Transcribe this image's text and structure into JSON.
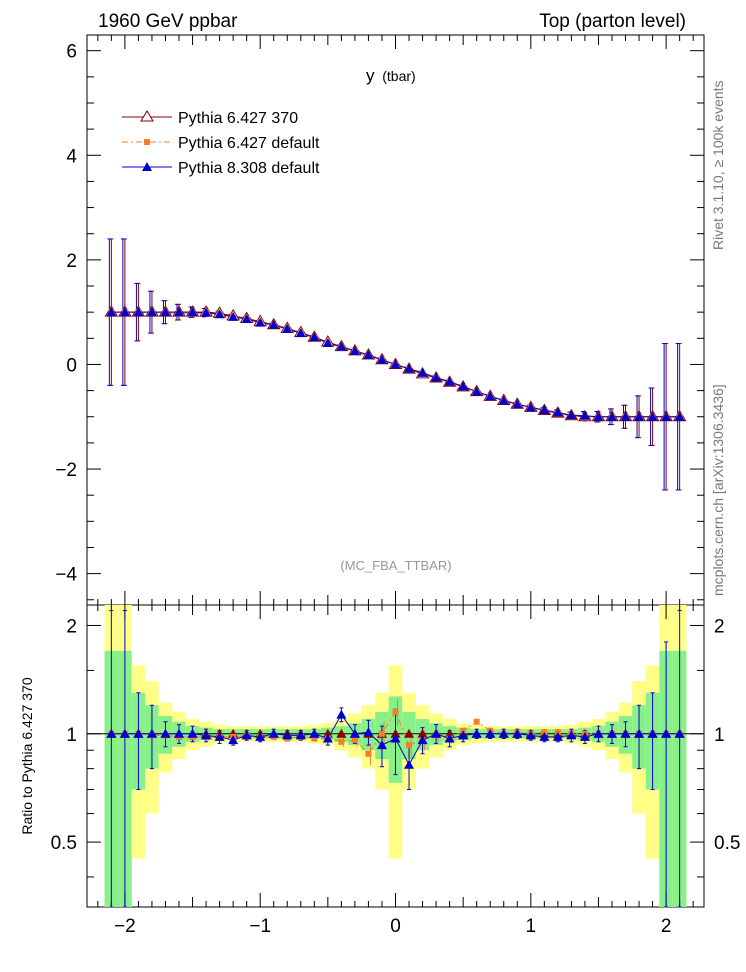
{
  "header": {
    "left_title": "1960 GeV ppbar",
    "right_title": "Top (parton level)",
    "plot_title": "y",
    "plot_title_sub": "(tbar)",
    "analysis_id": "(MC_FBA_TTBAR)"
  },
  "side_labels": {
    "rivet": "Rivet 3.1.10, ≥ 100k events",
    "mcplots": "mcplots.cern.ch [arXiv:1306.3436]"
  },
  "legend": {
    "entries": [
      {
        "label": "Pythia 6.427 370",
        "color": "#8b0000",
        "marker": "open-triangle"
      },
      {
        "label": "Pythia 6.427 default",
        "color": "#f08030",
        "marker": "square"
      },
      {
        "label": "Pythia 8.308 default",
        "color": "#0000cc",
        "marker": "triangle"
      }
    ]
  },
  "colors": {
    "ref": "#8b0000",
    "p6def": "#f08030",
    "p8": "#0000cc",
    "band_outer": "#ffff88",
    "band_inner": "#88f088"
  },
  "chart_data": [
    {
      "type": "line",
      "panel": "main",
      "xlim": [
        -2.28,
        2.28
      ],
      "ylim": [
        -4.6,
        6.3
      ],
      "yticks": [
        -4,
        -2,
        0,
        2,
        4,
        6
      ],
      "ytick_labels": [
        "−4",
        "−2",
        "0",
        "2",
        "4",
        "6"
      ],
      "x": [
        -2.1,
        -2.0,
        -1.9,
        -1.8,
        -1.7,
        -1.6,
        -1.5,
        -1.4,
        -1.3,
        -1.2,
        -1.1,
        -1.0,
        -0.9,
        -0.8,
        -0.7,
        -0.6,
        -0.5,
        -0.4,
        -0.3,
        -0.2,
        -0.1,
        0.0,
        0.1,
        0.2,
        0.3,
        0.4,
        0.5,
        0.6,
        0.7,
        0.8,
        0.9,
        1.0,
        1.1,
        1.2,
        1.3,
        1.4,
        1.5,
        1.6,
        1.7,
        1.8,
        1.9,
        2.0,
        2.1
      ],
      "series": [
        {
          "name": "Pythia 6.427 370",
          "values": [
            1.0,
            1.0,
            1.0,
            1.0,
            1.0,
            1.0,
            1.0,
            1.0,
            0.98,
            0.93,
            0.88,
            0.82,
            0.76,
            0.69,
            0.61,
            0.52,
            0.43,
            0.34,
            0.26,
            0.18,
            0.09,
            0.0,
            -0.09,
            -0.18,
            -0.26,
            -0.34,
            -0.43,
            -0.52,
            -0.61,
            -0.69,
            -0.76,
            -0.82,
            -0.88,
            -0.93,
            -0.98,
            -1.0,
            -1.0,
            -1.0,
            -1.0,
            -1.0,
            -1.0,
            -1.0,
            -1.0
          ],
          "errors": [
            1.4,
            1.4,
            0.55,
            0.4,
            0.22,
            0.15,
            0.1,
            0.08,
            0.06,
            0.05,
            0.04,
            0.04,
            0.03,
            0.03,
            0.03,
            0.03,
            0.03,
            0.03,
            0.03,
            0.03,
            0.03,
            0.03,
            0.03,
            0.03,
            0.03,
            0.03,
            0.03,
            0.03,
            0.03,
            0.03,
            0.03,
            0.04,
            0.04,
            0.05,
            0.06,
            0.08,
            0.1,
            0.15,
            0.22,
            0.4,
            0.55,
            1.4,
            1.4
          ]
        },
        {
          "name": "Pythia 6.427 default",
          "values": [
            1.0,
            1.0,
            1.0,
            0.99,
            0.99,
            0.98,
            0.98,
            0.98,
            0.96,
            0.91,
            0.87,
            0.8,
            0.75,
            0.67,
            0.6,
            0.5,
            0.42,
            0.32,
            0.25,
            0.16,
            0.09,
            0.0,
            -0.08,
            -0.17,
            -0.25,
            -0.33,
            -0.43,
            -0.53,
            -0.62,
            -0.69,
            -0.77,
            -0.82,
            -0.89,
            -0.94,
            -0.98,
            -1.0,
            -1.0,
            -1.0,
            -1.0,
            -1.0,
            -1.0,
            -1.0,
            -1.0
          ],
          "errors": [
            1.4,
            1.4,
            0.55,
            0.4,
            0.22,
            0.15,
            0.1,
            0.08,
            0.06,
            0.05,
            0.04,
            0.04,
            0.03,
            0.03,
            0.03,
            0.03,
            0.03,
            0.03,
            0.03,
            0.03,
            0.03,
            0.03,
            0.03,
            0.03,
            0.03,
            0.03,
            0.03,
            0.03,
            0.03,
            0.03,
            0.03,
            0.04,
            0.04,
            0.05,
            0.06,
            0.08,
            0.1,
            0.15,
            0.22,
            0.4,
            0.55,
            1.4,
            1.4
          ]
        },
        {
          "name": "Pythia 8.308 default",
          "values": [
            1.0,
            1.0,
            1.0,
            1.0,
            1.0,
            1.0,
            1.0,
            0.99,
            0.96,
            0.91,
            0.87,
            0.8,
            0.76,
            0.68,
            0.6,
            0.52,
            0.41,
            0.34,
            0.26,
            0.18,
            0.09,
            0.0,
            -0.08,
            -0.16,
            -0.25,
            -0.33,
            -0.42,
            -0.52,
            -0.61,
            -0.69,
            -0.76,
            -0.82,
            -0.87,
            -0.92,
            -0.97,
            -0.98,
            -1.0,
            -1.0,
            -1.0,
            -1.0,
            -1.0,
            -1.0,
            -1.0
          ],
          "errors": [
            1.4,
            1.4,
            0.55,
            0.4,
            0.22,
            0.15,
            0.1,
            0.08,
            0.06,
            0.05,
            0.04,
            0.04,
            0.03,
            0.03,
            0.03,
            0.03,
            0.03,
            0.03,
            0.03,
            0.03,
            0.03,
            0.03,
            0.03,
            0.03,
            0.03,
            0.03,
            0.03,
            0.03,
            0.03,
            0.03,
            0.03,
            0.04,
            0.04,
            0.05,
            0.06,
            0.08,
            0.1,
            0.15,
            0.22,
            0.4,
            0.55,
            1.4,
            1.4
          ]
        }
      ]
    },
    {
      "type": "line",
      "panel": "ratio",
      "ylabel": "Ratio to Pythia 6.427 370",
      "xlim": [
        -2.28,
        2.28
      ],
      "ylim": [
        0.33,
        2.28
      ],
      "yticks": [
        0.5,
        1,
        2
      ],
      "ytick_labels": [
        "0.5",
        "1",
        "2"
      ],
      "xticks": [
        -2,
        -1,
        0,
        1,
        2
      ],
      "xtick_labels": [
        "−2",
        "−1",
        "0",
        "1",
        "2"
      ],
      "x": [
        -2.1,
        -2.0,
        -1.9,
        -1.8,
        -1.7,
        -1.6,
        -1.5,
        -1.4,
        -1.3,
        -1.2,
        -1.1,
        -1.0,
        -0.9,
        -0.8,
        -0.7,
        -0.6,
        -0.5,
        -0.4,
        -0.3,
        -0.2,
        -0.1,
        0.0,
        0.1,
        0.2,
        0.3,
        0.4,
        0.5,
        0.6,
        0.7,
        0.8,
        0.9,
        1.0,
        1.1,
        1.2,
        1.3,
        1.4,
        1.5,
        1.6,
        1.7,
        1.8,
        1.9,
        2.0,
        2.1
      ],
      "band_outer_err": [
        1.4,
        1.4,
        0.55,
        0.4,
        0.22,
        0.15,
        0.1,
        0.08,
        0.06,
        0.05,
        0.05,
        0.05,
        0.05,
        0.05,
        0.05,
        0.06,
        0.07,
        0.1,
        0.14,
        0.2,
        0.3,
        0.55,
        0.3,
        0.2,
        0.14,
        0.1,
        0.07,
        0.06,
        0.05,
        0.05,
        0.05,
        0.05,
        0.05,
        0.05,
        0.06,
        0.08,
        0.1,
        0.15,
        0.22,
        0.4,
        0.55,
        1.4,
        1.4
      ],
      "band_inner_err": [
        0.7,
        0.7,
        0.3,
        0.2,
        0.12,
        0.08,
        0.05,
        0.04,
        0.03,
        0.03,
        0.03,
        0.03,
        0.03,
        0.03,
        0.03,
        0.03,
        0.04,
        0.05,
        0.07,
        0.1,
        0.15,
        0.27,
        0.15,
        0.1,
        0.07,
        0.05,
        0.04,
        0.03,
        0.03,
        0.03,
        0.03,
        0.03,
        0.03,
        0.03,
        0.03,
        0.04,
        0.05,
        0.08,
        0.12,
        0.2,
        0.3,
        0.7,
        0.7
      ],
      "series": [
        {
          "name": "Pythia 6.427 default",
          "values": [
            1.0,
            1.0,
            1.0,
            0.99,
            0.99,
            0.98,
            0.98,
            0.98,
            0.98,
            0.98,
            0.99,
            0.98,
            0.98,
            0.97,
            0.98,
            0.97,
            0.97,
            0.95,
            0.96,
            0.88,
            1.0,
            1.15,
            0.93,
            0.96,
            0.99,
            0.97,
            1.02,
            1.08,
            1.02,
            1.0,
            1.01,
            1.0,
            1.01,
            1.01,
            1.0,
            1.0,
            1.0,
            1.0,
            1.0,
            1.0,
            1.0,
            1.0,
            1.0
          ],
          "errors": [
            0.02,
            0.02,
            0.02,
            0.02,
            0.02,
            0.02,
            0.02,
            0.02,
            0.02,
            0.02,
            0.02,
            0.02,
            0.02,
            0.02,
            0.02,
            0.02,
            0.02,
            0.03,
            0.04,
            0.06,
            0.08,
            0.1,
            0.08,
            0.06,
            0.04,
            0.03,
            0.02,
            0.02,
            0.02,
            0.02,
            0.02,
            0.02,
            0.02,
            0.02,
            0.02,
            0.02,
            0.02,
            0.02,
            0.02,
            0.02,
            0.02,
            0.02,
            0.02
          ]
        },
        {
          "name": "Pythia 8.308 default",
          "values": [
            1.0,
            1.0,
            1.0,
            1.0,
            1.0,
            1.0,
            1.0,
            0.99,
            0.98,
            0.96,
            0.99,
            0.98,
            1.0,
            0.99,
            0.99,
            1.0,
            0.97,
            1.13,
            1.0,
            1.01,
            0.93,
            0.97,
            0.82,
            0.96,
            1.0,
            0.97,
            0.99,
            1.0,
            1.0,
            1.0,
            1.0,
            0.99,
            0.98,
            0.98,
            0.99,
            0.98,
            1.0,
            1.0,
            1.0,
            1.0,
            1.0,
            1.0,
            1.0
          ],
          "errors": [
            1.2,
            1.2,
            0.3,
            0.2,
            0.08,
            0.06,
            0.05,
            0.04,
            0.04,
            0.03,
            0.03,
            0.03,
            0.03,
            0.03,
            0.03,
            0.03,
            0.04,
            0.05,
            0.06,
            0.08,
            0.12,
            0.2,
            0.12,
            0.08,
            0.06,
            0.05,
            0.04,
            0.03,
            0.03,
            0.03,
            0.03,
            0.03,
            0.03,
            0.03,
            0.04,
            0.04,
            0.05,
            0.06,
            0.08,
            0.2,
            0.3,
            0.8,
            1.2
          ]
        }
      ]
    }
  ]
}
